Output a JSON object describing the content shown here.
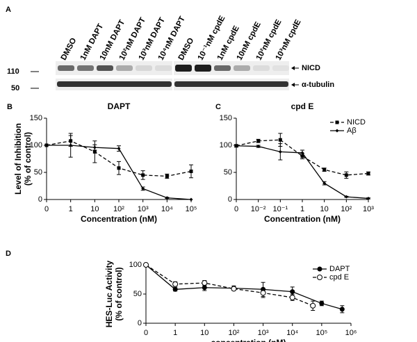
{
  "blot": {
    "panel_label": "A",
    "lanes": [
      "DMSO",
      "1nM DAPT",
      "10nM DAPT",
      "10²nM DAPT",
      "10³nM DAPT",
      "10⁴nM DAPT",
      "DMSO",
      "10⁻¹nM cpdE",
      "1nM cpdE",
      "10nM cpdE",
      "10²nM cpdE",
      "10³nM cpdE"
    ],
    "bands": [
      "NICD",
      "α-tubulin"
    ],
    "markers": [
      "110",
      "50"
    ]
  },
  "chart_data": [
    {
      "type": "line",
      "panel_label": "B",
      "title": "DAPT",
      "ylabel": [
        "Level of Inhibition",
        "(% of control)"
      ],
      "xlabel": "Concentration (nM)",
      "categories": [
        "0",
        "1",
        "10",
        "10²",
        "10³",
        "10⁴",
        "10⁵"
      ],
      "ylim": [
        0,
        150
      ],
      "yticks": [
        0,
        50,
        100,
        150
      ],
      "series": [
        {
          "name": "NICD",
          "color": "#000000",
          "dash": true,
          "marker": "square",
          "values": [
            100,
            108,
            88,
            58,
            45,
            43,
            52
          ],
          "errors": [
            0,
            10,
            20,
            12,
            8,
            4,
            12
          ]
        },
        {
          "name": "Aβ",
          "color": "#000000",
          "dash": false,
          "marker": "diamond",
          "values": [
            100,
            100,
            96,
            94,
            20,
            3,
            0
          ],
          "errors": [
            0,
            22,
            5,
            5,
            3,
            1,
            0
          ]
        }
      ]
    },
    {
      "type": "line",
      "panel_label": "C",
      "title": "cpd E",
      "xlabel": "Concentration (nM)",
      "categories": [
        "0",
        "10⁻²",
        "10⁻¹",
        "1",
        "10",
        "10²",
        "10³"
      ],
      "ylim": [
        0,
        150
      ],
      "yticks": [
        0,
        50,
        100,
        150
      ],
      "legend": "upper right",
      "series": [
        {
          "name": "NICD",
          "color": "#000000",
          "dash": true,
          "marker": "square",
          "values": [
            99,
            108,
            110,
            80,
            55,
            45,
            48
          ],
          "errors": [
            2,
            3,
            12,
            5,
            3,
            6,
            3
          ]
        },
        {
          "name": "Aβ",
          "color": "#000000",
          "dash": false,
          "marker": "diamond",
          "values": [
            99,
            98,
            88,
            86,
            30,
            5,
            2
          ],
          "errors": [
            2,
            2,
            15,
            5,
            3,
            1,
            1
          ]
        }
      ]
    },
    {
      "type": "line",
      "panel_label": "D",
      "ylabel": [
        "HES-Luc Activity",
        "(% of control)"
      ],
      "xlabel": "concentration (nM)",
      "xscale": "log",
      "xlim": [
        0,
        1000000
      ],
      "xticks": [
        0,
        1,
        10,
        {
          "value": 100,
          "label": "10²"
        },
        {
          "value": 1000,
          "label": "10³"
        },
        {
          "value": 10000,
          "label": "10⁴"
        },
        {
          "value": 100000,
          "label": "10⁵"
        },
        {
          "value": 1000000,
          "label": "10⁶"
        }
      ],
      "ylim": [
        0,
        100
      ],
      "yticks": [
        0,
        50,
        100
      ],
      "legend": "upper right",
      "series": [
        {
          "name": "DAPT",
          "color": "#000000",
          "dash": false,
          "marker": "circle",
          "x": [
            0,
            1,
            10,
            100,
            1000,
            10000,
            100000,
            500000
          ],
          "values": [
            100,
            58,
            61,
            60,
            58,
            54,
            34,
            24
          ],
          "errors": [
            0,
            3,
            5,
            4,
            12,
            8,
            4,
            6
          ]
        },
        {
          "name": "cpd E",
          "color": "#000000",
          "dash": true,
          "marker": "open-circle",
          "x": [
            0,
            1,
            10,
            100,
            1000,
            10000,
            50000
          ],
          "values": [
            100,
            67,
            69,
            59,
            52,
            44,
            30
          ],
          "errors": [
            0,
            4,
            4,
            3,
            8,
            5,
            8
          ]
        }
      ]
    }
  ]
}
